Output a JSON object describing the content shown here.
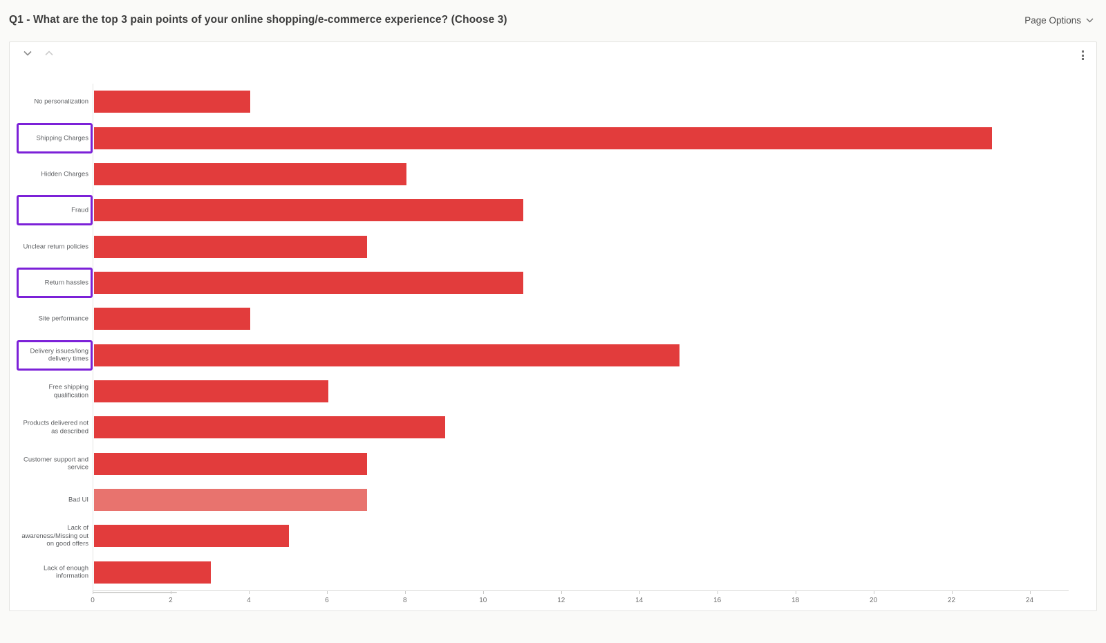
{
  "header": {
    "title": "Q1 - What are the top 3 pain points of your online shopping/e-commerce experience? (Choose 3)",
    "page_options_label": "Page Options"
  },
  "card": {
    "icons": {
      "collapse": "chevron-down",
      "expand": "chevron-up",
      "menu": "kebab-vertical",
      "page_options_caret": "chevron-down"
    }
  },
  "chart_data": {
    "type": "bar",
    "orientation": "horizontal",
    "title": "",
    "xlabel": "",
    "ylabel": "",
    "categories": [
      "No personalization",
      "Shipping Charges",
      "Hidden Charges",
      "Fraud",
      "Unclear return policies",
      "Return hassles",
      "Site performance",
      "Delivery issues/long delivery times",
      "Free shipping qualification",
      "Products delivered not as described",
      "Customer support and service",
      "Bad UI",
      "Lack of awareness/Missing out on good offers",
      "Lack of enough information"
    ],
    "values": [
      4,
      23,
      8,
      11,
      7,
      11,
      4,
      15,
      6,
      9,
      7,
      7,
      5,
      3
    ],
    "highlighted_categories": [
      "Shipping Charges",
      "Fraud",
      "Return hassles",
      "Delivery issues/long delivery times"
    ],
    "muted_categories": [
      "Bad UI"
    ],
    "xticks": [
      0,
      2,
      4,
      6,
      8,
      10,
      12,
      14,
      16,
      18,
      20,
      22,
      24
    ],
    "xlim": [
      0,
      25
    ],
    "grid": false,
    "legend": false,
    "colors": {
      "bar": "#e23c3c",
      "bar_muted": "#e8736e",
      "highlight_box": "#7c21d8"
    }
  }
}
